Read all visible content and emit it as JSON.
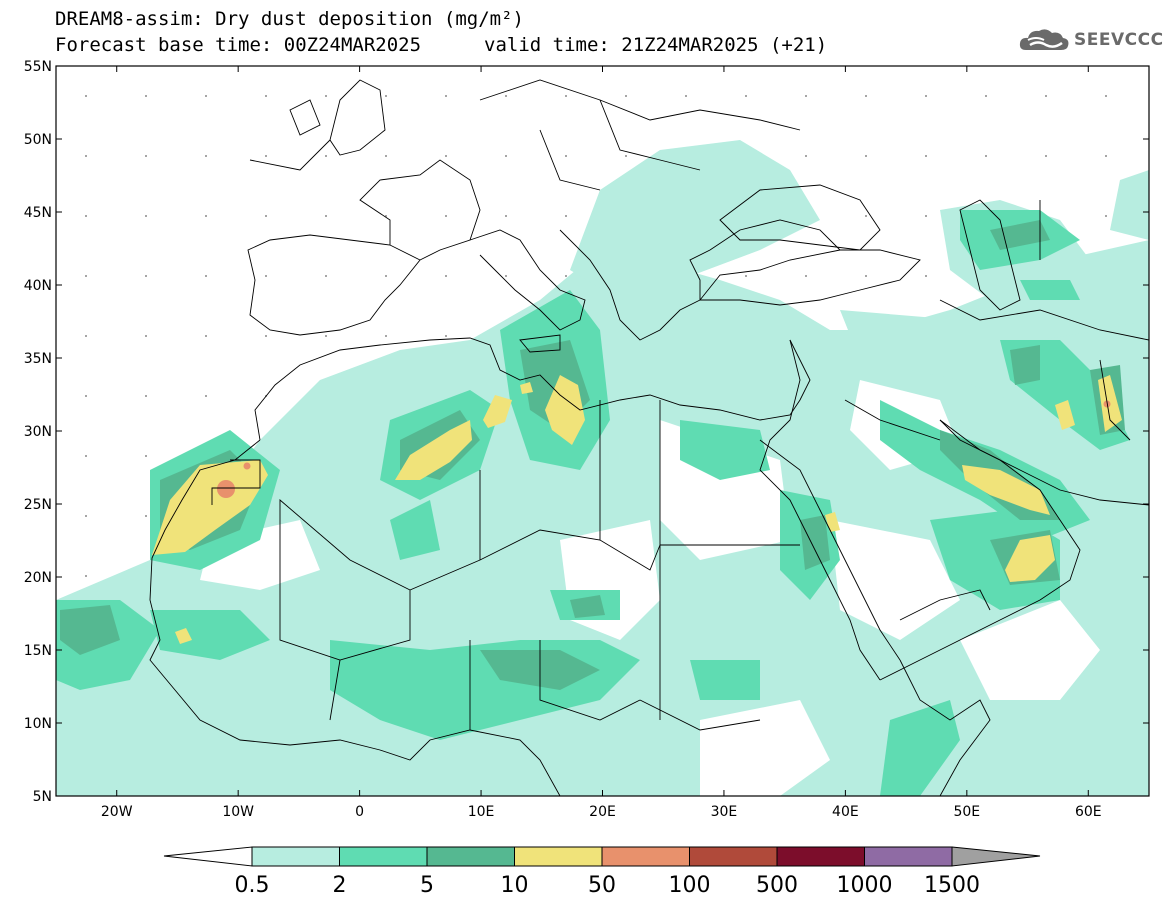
{
  "title": {
    "line1": "DREAM8-assim: Dry dust deposition (mg/m²)",
    "base_time": "Forecast base time: 00Z24MAR2025",
    "valid_time": "valid time: 21Z24MAR2025 (+21)"
  },
  "logo": {
    "text": "SEEVCCC",
    "icon": "cloud-icon"
  },
  "map": {
    "lon_range": [
      -25,
      65
    ],
    "lat_range": [
      5,
      55
    ],
    "lat_labels": [
      "55N",
      "50N",
      "45N",
      "40N",
      "35N",
      "30N",
      "25N",
      "20N",
      "15N",
      "10N",
      "5N"
    ],
    "lon_labels": [
      "20W",
      "10W",
      "0",
      "10E",
      "20E",
      "30E",
      "40E",
      "50E",
      "60E"
    ]
  },
  "colorbar": {
    "labels": [
      "0.5",
      "2",
      "5",
      "10",
      "50",
      "100",
      "500",
      "1000",
      "1500"
    ],
    "colors": [
      "#b7ede0",
      "#5fdcb2",
      "#55b891",
      "#f0e37a",
      "#e8916c",
      "#b04a3a",
      "#7c0d2b",
      "#8f6ba4"
    ],
    "over_color": "#a0a0a0"
  }
}
